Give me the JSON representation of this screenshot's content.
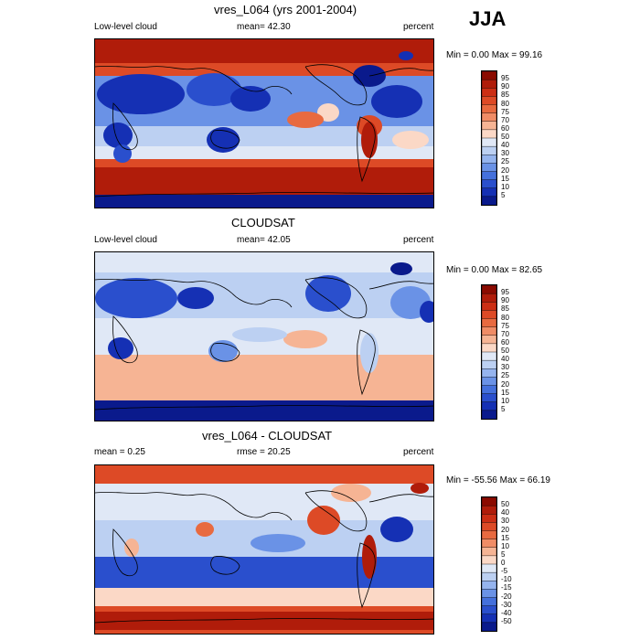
{
  "season": "JJA",
  "panels": [
    {
      "title": "vres_L064 (yrs 2001-2004)",
      "left_label": "Low-level cloud",
      "center_label": "mean=  42.30",
      "right_label": "percent",
      "minmax": "Min =    0.00 Max =  99.16",
      "scheme": "model",
      "colorbar": {
        "labels": [
          "95",
          "90",
          "85",
          "80",
          "75",
          "70",
          "60",
          "50",
          "40",
          "30",
          "25",
          "20",
          "15",
          "10",
          "5"
        ],
        "colors": [
          "#8b0a00",
          "#b01c0a",
          "#cc2e14",
          "#dd4a26",
          "#e86a40",
          "#f08c66",
          "#f6b494",
          "#fbd8c6",
          "#e0e8f6",
          "#bcd0f2",
          "#95b4ee",
          "#6a92e6",
          "#4470dc",
          "#2a4fcd",
          "#1530b4",
          "#0a1a8c"
        ]
      }
    },
    {
      "title": "CLOUDSAT",
      "left_label": "Low-level cloud",
      "center_label": "mean=  42.05",
      "right_label": "percent",
      "minmax": "Min =    0.00 Max =  82.65",
      "scheme": "obs",
      "colorbar": {
        "labels": [
          "95",
          "90",
          "85",
          "80",
          "75",
          "70",
          "60",
          "50",
          "40",
          "30",
          "25",
          "20",
          "15",
          "10",
          "5"
        ],
        "colors": [
          "#8b0a00",
          "#b01c0a",
          "#cc2e14",
          "#dd4a26",
          "#e86a40",
          "#f08c66",
          "#f6b494",
          "#fbd8c6",
          "#e0e8f6",
          "#bcd0f2",
          "#95b4ee",
          "#6a92e6",
          "#4470dc",
          "#2a4fcd",
          "#1530b4",
          "#0a1a8c"
        ]
      }
    },
    {
      "title": "vres_L064 - CLOUDSAT",
      "left_label": "mean =    0.25",
      "center_label": "rmse =  20.25",
      "right_label": "percent",
      "minmax": "Min = -55.56 Max =  66.19",
      "scheme": "diff",
      "colorbar": {
        "labels": [
          "50",
          "40",
          "30",
          "20",
          "15",
          "10",
          "5",
          "0",
          "-5",
          "-10",
          "-15",
          "-20",
          "-30",
          "-40",
          "-50"
        ],
        "colors": [
          "#8b0a00",
          "#b01c0a",
          "#cc2e14",
          "#dd4a26",
          "#e86a40",
          "#f08c66",
          "#f6b494",
          "#fbd8c6",
          "#e0e8f6",
          "#bcd0f2",
          "#95b4ee",
          "#6a92e6",
          "#4470dc",
          "#2a4fcd",
          "#1530b4",
          "#0a1a8c"
        ]
      }
    }
  ]
}
